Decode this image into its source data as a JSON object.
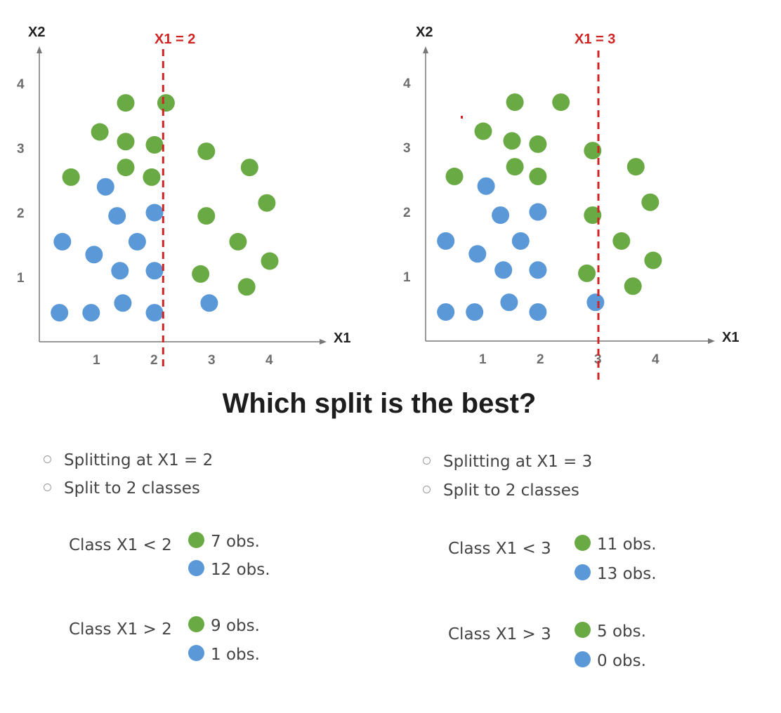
{
  "colors": {
    "green": "#6aaa44",
    "blue": "#5a98d8",
    "split_line": "#d02424",
    "axis": "#777777",
    "tick_text": "#6e6e6e",
    "axis_name": "#222222"
  },
  "title": "Which split is the best?",
  "chart_data": [
    {
      "type": "scatter",
      "xlabel": "X1",
      "ylabel": "X2",
      "xticks": [
        "1",
        "2",
        "3",
        "4"
      ],
      "yticks": [
        "1",
        "2",
        "3",
        "4"
      ],
      "split": {
        "label": "X1 = 2",
        "x": 2.15
      },
      "series": [
        {
          "color": "green",
          "points": [
            [
              1.5,
              3.7
            ],
            [
              2.2,
              3.7
            ],
            [
              1.05,
              3.25
            ],
            [
              1.5,
              3.1
            ],
            [
              2.0,
              3.05
            ],
            [
              2.9,
              2.95
            ],
            [
              0.55,
              2.55
            ],
            [
              1.5,
              2.7
            ],
            [
              1.95,
              2.55
            ],
            [
              3.65,
              2.7
            ],
            [
              3.95,
              2.15
            ],
            [
              2.9,
              1.95
            ],
            [
              3.45,
              1.55
            ],
            [
              4.0,
              1.25
            ],
            [
              2.8,
              1.05
            ],
            [
              3.6,
              0.85
            ]
          ]
        },
        {
          "color": "blue",
          "points": [
            [
              1.15,
              2.4
            ],
            [
              1.35,
              1.95
            ],
            [
              2.0,
              2.0
            ],
            [
              0.4,
              1.55
            ],
            [
              1.7,
              1.55
            ],
            [
              0.95,
              1.35
            ],
            [
              1.4,
              1.1
            ],
            [
              2.0,
              1.1
            ],
            [
              0.35,
              0.45
            ],
            [
              0.9,
              0.45
            ],
            [
              1.45,
              0.6
            ],
            [
              2.0,
              0.45
            ],
            [
              2.95,
              0.6
            ]
          ]
        }
      ]
    },
    {
      "type": "scatter",
      "xlabel": "X1",
      "ylabel": "X2",
      "xticks": [
        "1",
        "2",
        "3",
        "4"
      ],
      "yticks": [
        "1",
        "2",
        "3",
        "4"
      ],
      "split": {
        "label": "X1 = 3",
        "x": 3.0
      },
      "series": [
        {
          "color": "green",
          "points": [
            [
              1.55,
              3.7
            ],
            [
              2.35,
              3.7
            ],
            [
              1.0,
              3.25
            ],
            [
              1.5,
              3.1
            ],
            [
              1.95,
              3.05
            ],
            [
              2.9,
              2.95
            ],
            [
              0.5,
              2.55
            ],
            [
              1.55,
              2.7
            ],
            [
              1.95,
              2.55
            ],
            [
              3.65,
              2.7
            ],
            [
              3.9,
              2.15
            ],
            [
              2.9,
              1.95
            ],
            [
              3.4,
              1.55
            ],
            [
              3.95,
              1.25
            ],
            [
              2.8,
              1.05
            ],
            [
              3.6,
              0.85
            ]
          ]
        },
        {
          "color": "blue",
          "points": [
            [
              1.05,
              2.4
            ],
            [
              1.3,
              1.95
            ],
            [
              1.95,
              2.0
            ],
            [
              0.35,
              1.55
            ],
            [
              1.65,
              1.55
            ],
            [
              0.9,
              1.35
            ],
            [
              1.35,
              1.1
            ],
            [
              1.95,
              1.1
            ],
            [
              0.35,
              0.45
            ],
            [
              0.85,
              0.45
            ],
            [
              1.45,
              0.6
            ],
            [
              1.95,
              0.45
            ],
            [
              2.95,
              0.6
            ]
          ]
        }
      ]
    }
  ],
  "left": {
    "bullets": [
      "Splitting at X1 = 2",
      "Split to 2 classes"
    ],
    "classes": [
      {
        "label": "Class X1 < 2",
        "green": "7 obs.",
        "blue": "12 obs."
      },
      {
        "label": "Class X1 > 2",
        "green": "9 obs.",
        "blue": "1 obs."
      }
    ]
  },
  "right": {
    "bullets": [
      "Splitting at X1 = 3",
      "Split to 2 classes"
    ],
    "classes": [
      {
        "label": "Class X1 < 3",
        "green": "11 obs.",
        "blue": "13 obs."
      },
      {
        "label": "Class X1 > 3",
        "green": "5 obs.",
        "blue": "0 obs."
      }
    ]
  }
}
